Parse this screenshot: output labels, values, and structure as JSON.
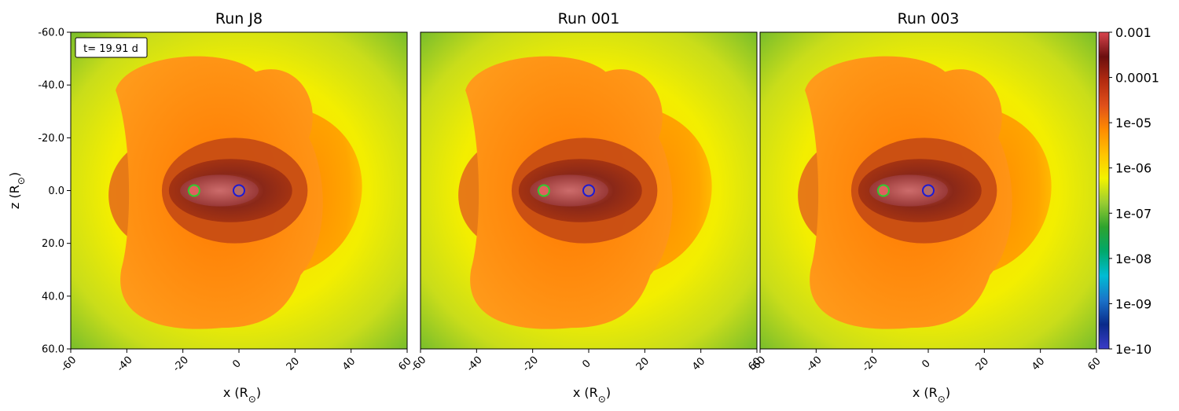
{
  "chart_data": [
    {
      "type": "heatmap",
      "title": "Run J8",
      "xlabel": "x (R",
      "ylabel": "z (R",
      "xlim": [
        -60,
        60
      ],
      "ylim": [
        60,
        -60
      ],
      "xticks": [
        "-60",
        "-40",
        "-20",
        "0",
        "20",
        "40",
        "60"
      ],
      "yticks": [
        "-60.0",
        "-40.0",
        "-20.0",
        "0.0",
        "20.0",
        "40.0",
        "60.0"
      ],
      "annotation": "t= 19.91 d",
      "markers": [
        {
          "x": -16,
          "z": 0,
          "color": "#2ecc2e"
        },
        {
          "x": 0,
          "z": 0,
          "color": "#1a1ad6"
        }
      ]
    },
    {
      "type": "heatmap",
      "title": "Run 001",
      "xlabel": "x (R",
      "xlim": [
        -60,
        60
      ],
      "ylim": [
        60,
        -60
      ],
      "xticks": [
        "-60",
        "-40",
        "-20",
        "0",
        "20",
        "40",
        "60"
      ],
      "markers": [
        {
          "x": -16,
          "z": 0,
          "color": "#2ecc2e"
        },
        {
          "x": 0,
          "z": 0,
          "color": "#1a1ad6"
        }
      ]
    },
    {
      "type": "heatmap",
      "title": "Run 003",
      "xlabel": "x (R",
      "xlim": [
        -60,
        60
      ],
      "ylim": [
        60,
        -60
      ],
      "xticks": [
        "-60",
        "-40",
        "-20",
        "0",
        "20",
        "40",
        "60"
      ],
      "markers": [
        {
          "x": -16,
          "z": 0,
          "color": "#2ecc2e"
        },
        {
          "x": 0,
          "z": 0,
          "color": "#1a1ad6"
        }
      ]
    }
  ],
  "colorbar": {
    "scale": "log",
    "range": [
      1e-10,
      0.001
    ],
    "ticks": [
      "0.001",
      "0.0001",
      "1e-05",
      "1e-06",
      "1e-07",
      "1e-08",
      "1e-09",
      "1e-10"
    ],
    "colors": [
      "#3b3bc8",
      "#0a2a8a",
      "#1a73c9",
      "#00bcd4",
      "#00a86b",
      "#2ea32e",
      "#9acd32",
      "#f3f300",
      "#ffc300",
      "#ff8c00",
      "#e0501a",
      "#b32b10",
      "#6b0f0f",
      "#d9444d"
    ]
  }
}
